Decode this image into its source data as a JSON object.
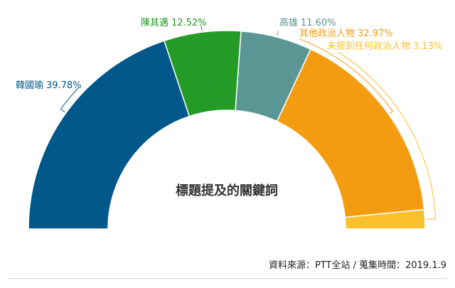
{
  "chart_data": {
    "type": "pie",
    "variant": "half-donut",
    "title": "標題提及的關鍵詞",
    "categories": [
      "韓國瑜",
      "陳其邁",
      "高雄",
      "其他政治人物",
      "未提到任何政治人物"
    ],
    "values": [
      39.78,
      12.52,
      11.6,
      32.97,
      3.13
    ],
    "unit": "%",
    "colors": [
      "#00578a",
      "#249a27",
      "#5a9693",
      "#f39c12",
      "#fbc02d"
    ]
  },
  "source": "資料來源：PTT全站 / 蒐集時間：2019.1.9"
}
